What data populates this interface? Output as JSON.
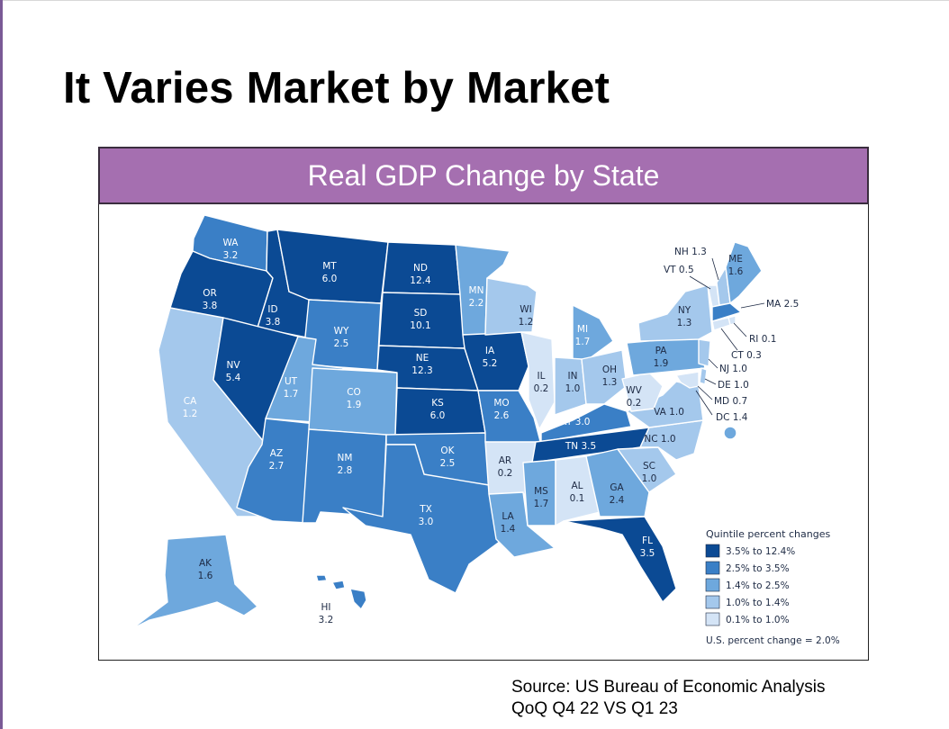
{
  "slide": {
    "title": "It Varies Market by Market",
    "source_line1": "Source: US Bureau of Economic Analysis",
    "source_line2": "QoQ Q4 22 VS Q1 23"
  },
  "map": {
    "header": "Real GDP Change by State",
    "colors": {
      "header_bg": "#a56fb0",
      "q1": "#0b4a94",
      "q2": "#3a7fc6",
      "q3": "#6ea8dd",
      "q4": "#a4c8ec",
      "q5": "#d4e4f6"
    },
    "states": [
      {
        "code": "WA",
        "value": "3.2"
      },
      {
        "code": "OR",
        "value": "3.8"
      },
      {
        "code": "CA",
        "value": "1.2"
      },
      {
        "code": "ID",
        "value": "3.8"
      },
      {
        "code": "NV",
        "value": "5.4"
      },
      {
        "code": "MT",
        "value": "6.0"
      },
      {
        "code": "WY",
        "value": "2.5"
      },
      {
        "code": "UT",
        "value": "1.7"
      },
      {
        "code": "AZ",
        "value": "2.7"
      },
      {
        "code": "CO",
        "value": "1.9"
      },
      {
        "code": "NM",
        "value": "2.8"
      },
      {
        "code": "ND",
        "value": "12.4"
      },
      {
        "code": "SD",
        "value": "10.1"
      },
      {
        "code": "NE",
        "value": "12.3"
      },
      {
        "code": "KS",
        "value": "6.0"
      },
      {
        "code": "OK",
        "value": "2.5"
      },
      {
        "code": "TX",
        "value": "3.0"
      },
      {
        "code": "MN",
        "value": "2.2"
      },
      {
        "code": "IA",
        "value": "5.2"
      },
      {
        "code": "MO",
        "value": "2.6"
      },
      {
        "code": "AR",
        "value": "0.2"
      },
      {
        "code": "LA",
        "value": "1.4"
      },
      {
        "code": "WI",
        "value": "1.2"
      },
      {
        "code": "IL",
        "value": "0.2"
      },
      {
        "code": "MI",
        "value": "1.7"
      },
      {
        "code": "IN",
        "value": "1.0"
      },
      {
        "code": "OH",
        "value": "1.3"
      },
      {
        "code": "KY",
        "value": "3.0"
      },
      {
        "code": "TN",
        "value": "3.5"
      },
      {
        "code": "MS",
        "value": "1.7"
      },
      {
        "code": "AL",
        "value": "0.1"
      },
      {
        "code": "GA",
        "value": "2.4"
      },
      {
        "code": "FL",
        "value": "3.5"
      },
      {
        "code": "SC",
        "value": "1.0"
      },
      {
        "code": "NC",
        "value": "1.0"
      },
      {
        "code": "VA",
        "value": "1.0"
      },
      {
        "code": "WV",
        "value": "0.2"
      },
      {
        "code": "PA",
        "value": "1.9"
      },
      {
        "code": "NY",
        "value": "1.3"
      },
      {
        "code": "ME",
        "value": "1.6"
      },
      {
        "code": "AK",
        "value": "1.6"
      },
      {
        "code": "HI",
        "value": "3.2"
      }
    ],
    "callouts": {
      "NH": "NH 1.3",
      "VT": "VT 0.5",
      "MA": "MA 2.5",
      "RI": "RI 0.1",
      "CT": "CT 0.3",
      "NJ": "NJ 1.0",
      "DE": "DE 1.0",
      "MD": "MD 0.7",
      "DC": "DC 1.4"
    },
    "legend": {
      "title": "Quintile percent changes",
      "items": [
        "3.5% to 12.4%",
        "2.5% to 3.5%",
        "1.4% to 2.5%",
        "1.0% to 1.4%",
        "0.1% to 1.0%"
      ],
      "footer": "U.S. percent change = 2.0%"
    }
  }
}
